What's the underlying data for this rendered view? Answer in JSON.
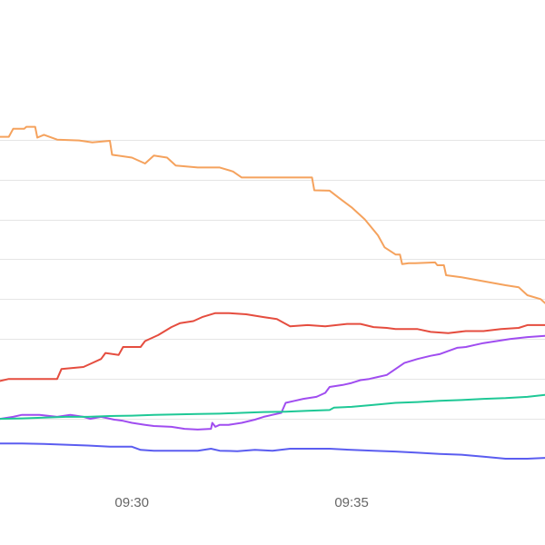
{
  "chart_data": {
    "type": "line",
    "title": "",
    "xlabel": "",
    "ylabel": "",
    "x_axis": {
      "range_minutes": [
        27.0,
        39.4
      ],
      "ticks": [
        {
          "label": "09:30",
          "minutes": 30
        },
        {
          "label": "09:35",
          "minutes": 35
        }
      ]
    },
    "y_axis": {
      "range": [
        0,
        11.5
      ],
      "gridlines": [
        1,
        2,
        3,
        4,
        5,
        6,
        7,
        8
      ],
      "tick_labels_visible": false
    },
    "grid": true,
    "legend": "none",
    "series": [
      {
        "color": "#f5a25d",
        "points": [
          [
            27.0,
            8.07
          ],
          [
            27.2,
            8.07
          ],
          [
            27.3,
            8.27
          ],
          [
            27.55,
            8.27
          ],
          [
            27.6,
            8.32
          ],
          [
            27.8,
            8.32
          ],
          [
            27.85,
            8.05
          ],
          [
            28.0,
            8.12
          ],
          [
            28.3,
            8.0
          ],
          [
            28.8,
            7.98
          ],
          [
            29.1,
            7.93
          ],
          [
            29.5,
            7.97
          ],
          [
            29.55,
            7.62
          ],
          [
            30.0,
            7.55
          ],
          [
            30.3,
            7.4
          ],
          [
            30.5,
            7.6
          ],
          [
            30.8,
            7.55
          ],
          [
            31.0,
            7.35
          ],
          [
            31.5,
            7.3
          ],
          [
            32.0,
            7.3
          ],
          [
            32.3,
            7.2
          ],
          [
            32.5,
            7.05
          ],
          [
            33.0,
            7.05
          ],
          [
            33.5,
            7.05
          ],
          [
            34.1,
            7.05
          ],
          [
            34.15,
            6.73
          ],
          [
            34.5,
            6.72
          ],
          [
            34.7,
            6.55
          ],
          [
            35.0,
            6.3
          ],
          [
            35.3,
            6.0
          ],
          [
            35.6,
            5.6
          ],
          [
            35.75,
            5.3
          ],
          [
            36.0,
            5.12
          ],
          [
            36.1,
            5.12
          ],
          [
            36.15,
            4.88
          ],
          [
            36.3,
            4.9
          ],
          [
            36.45,
            4.9
          ],
          [
            36.9,
            4.92
          ],
          [
            36.95,
            4.85
          ],
          [
            37.1,
            4.85
          ],
          [
            37.15,
            4.6
          ],
          [
            37.5,
            4.55
          ],
          [
            38.0,
            4.45
          ],
          [
            38.5,
            4.35
          ],
          [
            38.8,
            4.3
          ],
          [
            39.0,
            4.1
          ],
          [
            39.3,
            4.0
          ],
          [
            39.4,
            3.9
          ]
        ]
      },
      {
        "color": "#e54d3f",
        "points": [
          [
            27.0,
            1.95
          ],
          [
            27.2,
            2.0
          ],
          [
            27.5,
            2.0
          ],
          [
            28.0,
            2.0
          ],
          [
            28.3,
            2.0
          ],
          [
            28.4,
            2.25
          ],
          [
            28.9,
            2.3
          ],
          [
            29.1,
            2.4
          ],
          [
            29.3,
            2.5
          ],
          [
            29.4,
            2.65
          ],
          [
            29.7,
            2.6
          ],
          [
            29.8,
            2.8
          ],
          [
            30.2,
            2.8
          ],
          [
            30.3,
            2.95
          ],
          [
            30.6,
            3.1
          ],
          [
            30.9,
            3.3
          ],
          [
            31.1,
            3.4
          ],
          [
            31.4,
            3.45
          ],
          [
            31.6,
            3.55
          ],
          [
            31.9,
            3.65
          ],
          [
            32.2,
            3.65
          ],
          [
            32.6,
            3.62
          ],
          [
            33.0,
            3.55
          ],
          [
            33.3,
            3.5
          ],
          [
            33.6,
            3.32
          ],
          [
            34.0,
            3.35
          ],
          [
            34.4,
            3.32
          ],
          [
            34.9,
            3.38
          ],
          [
            35.2,
            3.38
          ],
          [
            35.5,
            3.3
          ],
          [
            35.8,
            3.28
          ],
          [
            36.0,
            3.25
          ],
          [
            36.5,
            3.25
          ],
          [
            36.8,
            3.18
          ],
          [
            37.2,
            3.15
          ],
          [
            37.6,
            3.2
          ],
          [
            38.0,
            3.2
          ],
          [
            38.4,
            3.25
          ],
          [
            38.8,
            3.28
          ],
          [
            39.0,
            3.35
          ],
          [
            39.4,
            3.35
          ]
        ]
      },
      {
        "color": "#a04df0",
        "points": [
          [
            27.0,
            1.0
          ],
          [
            27.3,
            1.05
          ],
          [
            27.5,
            1.1
          ],
          [
            27.9,
            1.1
          ],
          [
            28.3,
            1.05
          ],
          [
            28.6,
            1.1
          ],
          [
            28.9,
            1.05
          ],
          [
            29.05,
            1.0
          ],
          [
            29.3,
            1.05
          ],
          [
            29.6,
            0.98
          ],
          [
            29.8,
            0.95
          ],
          [
            30.0,
            0.9
          ],
          [
            30.3,
            0.85
          ],
          [
            30.5,
            0.82
          ],
          [
            30.9,
            0.8
          ],
          [
            31.2,
            0.75
          ],
          [
            31.5,
            0.73
          ],
          [
            31.8,
            0.75
          ],
          [
            31.83,
            0.9
          ],
          [
            31.9,
            0.8
          ],
          [
            32.0,
            0.85
          ],
          [
            32.2,
            0.85
          ],
          [
            32.5,
            0.9
          ],
          [
            32.8,
            0.98
          ],
          [
            33.0,
            1.05
          ],
          [
            33.2,
            1.1
          ],
          [
            33.4,
            1.15
          ],
          [
            33.5,
            1.4
          ],
          [
            33.7,
            1.45
          ],
          [
            33.9,
            1.5
          ],
          [
            34.2,
            1.55
          ],
          [
            34.4,
            1.65
          ],
          [
            34.5,
            1.8
          ],
          [
            34.8,
            1.85
          ],
          [
            35.0,
            1.9
          ],
          [
            35.2,
            1.97
          ],
          [
            35.4,
            2.0
          ],
          [
            35.6,
            2.05
          ],
          [
            35.8,
            2.1
          ],
          [
            36.0,
            2.25
          ],
          [
            36.2,
            2.4
          ],
          [
            36.5,
            2.5
          ],
          [
            36.8,
            2.58
          ],
          [
            37.0,
            2.62
          ],
          [
            37.2,
            2.7
          ],
          [
            37.4,
            2.78
          ],
          [
            37.6,
            2.8
          ],
          [
            37.8,
            2.85
          ],
          [
            38.0,
            2.9
          ],
          [
            38.3,
            2.95
          ],
          [
            38.6,
            3.0
          ],
          [
            39.0,
            3.05
          ],
          [
            39.4,
            3.08
          ]
        ]
      },
      {
        "color": "#1fc896",
        "points": [
          [
            27.0,
            1.0
          ],
          [
            27.5,
            1.01
          ],
          [
            28.0,
            1.03
          ],
          [
            28.5,
            1.05
          ],
          [
            29.0,
            1.05
          ],
          [
            29.5,
            1.07
          ],
          [
            30.0,
            1.08
          ],
          [
            30.5,
            1.1
          ],
          [
            31.0,
            1.11
          ],
          [
            31.5,
            1.12
          ],
          [
            32.0,
            1.13
          ],
          [
            32.5,
            1.15
          ],
          [
            33.0,
            1.17
          ],
          [
            33.5,
            1.18
          ],
          [
            34.0,
            1.2
          ],
          [
            34.5,
            1.22
          ],
          [
            34.6,
            1.28
          ],
          [
            35.0,
            1.3
          ],
          [
            35.5,
            1.35
          ],
          [
            36.0,
            1.4
          ],
          [
            36.5,
            1.42
          ],
          [
            37.0,
            1.45
          ],
          [
            37.5,
            1.47
          ],
          [
            38.0,
            1.5
          ],
          [
            38.5,
            1.52
          ],
          [
            39.0,
            1.55
          ],
          [
            39.4,
            1.6
          ]
        ]
      },
      {
        "color": "#5b5df0",
        "points": [
          [
            27.0,
            0.38
          ],
          [
            27.5,
            0.38
          ],
          [
            28.0,
            0.37
          ],
          [
            28.5,
            0.35
          ],
          [
            29.0,
            0.33
          ],
          [
            29.5,
            0.3
          ],
          [
            30.0,
            0.3
          ],
          [
            30.2,
            0.22
          ],
          [
            30.5,
            0.2
          ],
          [
            31.0,
            0.2
          ],
          [
            31.5,
            0.2
          ],
          [
            31.8,
            0.25
          ],
          [
            32.0,
            0.2
          ],
          [
            32.4,
            0.19
          ],
          [
            32.8,
            0.22
          ],
          [
            33.2,
            0.2
          ],
          [
            33.6,
            0.25
          ],
          [
            34.0,
            0.25
          ],
          [
            34.5,
            0.25
          ],
          [
            35.0,
            0.22
          ],
          [
            35.5,
            0.2
          ],
          [
            36.0,
            0.18
          ],
          [
            36.5,
            0.15
          ],
          [
            37.0,
            0.12
          ],
          [
            37.5,
            0.1
          ],
          [
            38.0,
            0.05
          ],
          [
            38.5,
            0.0
          ],
          [
            39.0,
            0.0
          ],
          [
            39.4,
            0.02
          ]
        ]
      }
    ]
  }
}
